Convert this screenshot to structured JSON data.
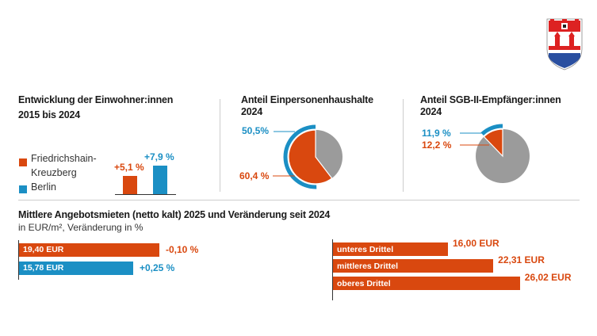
{
  "colors": {
    "orange": "#d9480f",
    "blue": "#1b8fc4",
    "gray": "#9b9b9b"
  },
  "logo": {
    "name": "Friedrichshain-Kreuzberg coat of arms"
  },
  "chart_data": [
    {
      "type": "bar",
      "title": "Entwicklung der Einwohner:innen",
      "subtitle": "2015 bis 2024",
      "categories": [
        "Friedrichshain-Kreuzberg",
        "Berlin"
      ],
      "values": [
        5.1,
        7.9
      ],
      "labels": [
        "+5,1 %",
        "+7,9 %"
      ],
      "legend": {
        "placement": "left",
        "entries": [
          "Friedrichshain-",
          "Kreuzberg",
          "Berlin"
        ]
      }
    },
    {
      "type": "pie",
      "title": "Anteil Einpersonenhaushalte",
      "subtitle": "2024",
      "district_value": 60.4,
      "district_label": "60,4 %",
      "berlin_value": 50.5,
      "berlin_label": "50,5%"
    },
    {
      "type": "pie",
      "title": "Anteil SGB-II-Empfänger:innen",
      "subtitle": "2024",
      "district_value": 12.2,
      "district_label": "12,2 %",
      "berlin_value": 11.9,
      "berlin_label": "11,9 %"
    },
    {
      "type": "bar",
      "title": "Mittlere Angebotsmieten (netto kalt) 2025 und Veränderung seit 2024",
      "subtitle": "in EUR/m², Veränderung in %",
      "rows": [
        {
          "value": 19.4,
          "label": "19,40 EUR",
          "change": "-0,10 %",
          "color": "orange"
        },
        {
          "value": 15.78,
          "label": "15,78 EUR",
          "change": "+0,25 %",
          "color": "blue"
        }
      ]
    },
    {
      "type": "bar",
      "rows": [
        {
          "category": "unteres Drittel",
          "value": 16.0,
          "label": "16,00 EUR"
        },
        {
          "category": "mittleres Drittel",
          "value": 22.31,
          "label": "22,31 EUR"
        },
        {
          "category": "oberes Drittel",
          "value": 26.02,
          "label": "26,02 EUR"
        }
      ]
    }
  ]
}
